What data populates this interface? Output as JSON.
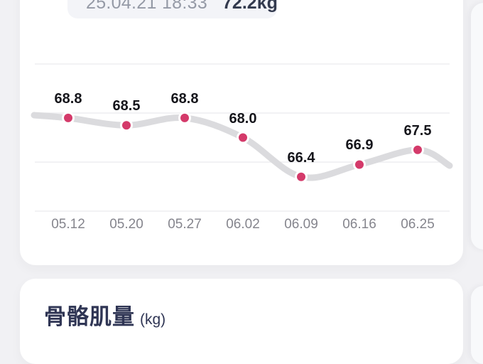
{
  "colors": {
    "background": "#f1f1f4",
    "card": "#ffffff",
    "badge_bg": "#f3f4f8",
    "badge_date_text": "#959aa6",
    "badge_value_text": "#333a4e",
    "line": "#dbdbde",
    "point": "#d43a6a",
    "point_ring": "#ffffff",
    "gridline": "#ededf0",
    "value_label_text": "#15151b",
    "axis_label_text": "#85858d",
    "title_text": "#2f3554"
  },
  "weight_card": {
    "badge": {
      "datetime": "25.04.21 18:33",
      "value": "72.2kg"
    }
  },
  "chart_data": {
    "type": "line",
    "title": "",
    "xlabel": "",
    "ylabel": "",
    "categories": [
      "05.12",
      "05.20",
      "05.27",
      "06.02",
      "06.09",
      "06.16",
      "06.25"
    ],
    "series": [
      {
        "name": "weight-kg",
        "values": [
          68.8,
          68.5,
          68.8,
          68.0,
          66.4,
          66.9,
          67.5
        ]
      }
    ],
    "point_labels": [
      "68.8",
      "68.5",
      "68.8",
      "68.0",
      "66.4",
      "66.9",
      "67.5"
    ],
    "gridlines_kg": [
      71,
      69,
      67,
      65
    ],
    "ylim": [
      64.5,
      71.5
    ],
    "grid": true,
    "legend": false,
    "line_color": "#dbdbde",
    "point_color": "#d43a6a"
  },
  "muscle_card": {
    "title": "骨骼肌量",
    "unit": "(kg)"
  }
}
